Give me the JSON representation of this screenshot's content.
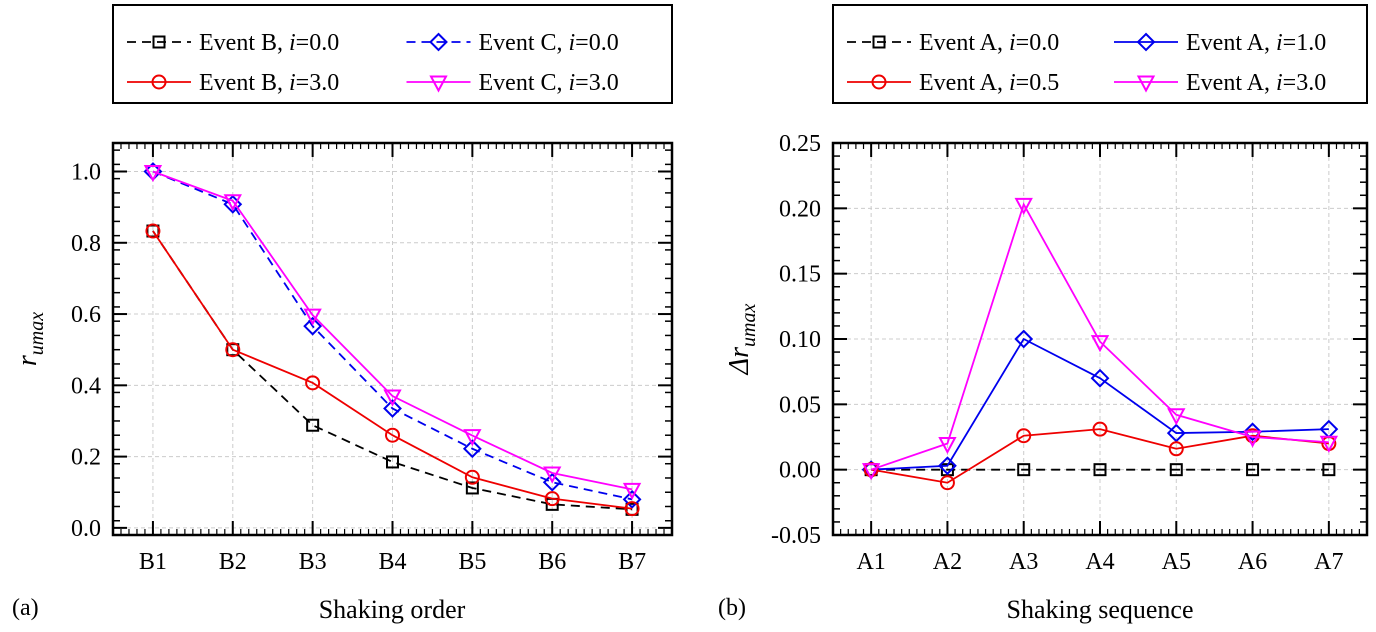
{
  "chart_data": [
    {
      "type": "line",
      "panel_label": "(a)",
      "xlabel": "Shaking order",
      "ylabel": "r",
      "ylabel_sub": "umax",
      "categories": [
        "B1",
        "B2",
        "B3",
        "B4",
        "B5",
        "B6",
        "B7"
      ],
      "ylim": [
        -0.02,
        1.08
      ],
      "yticks": [
        0.0,
        0.2,
        0.4,
        0.6,
        0.8,
        1.0
      ],
      "ytick_labels": [
        "0.0",
        "0.2",
        "0.4",
        "0.6",
        "0.8",
        "1.0"
      ],
      "grid": true,
      "legend_placement": "top (outside)",
      "series": [
        {
          "name": "Event B, i=0.0",
          "color": "#000000",
          "dash": true,
          "marker": "square",
          "values": [
            0.833,
            0.5,
            0.288,
            0.185,
            0.112,
            0.066,
            0.052
          ]
        },
        {
          "name": "Event C, i=0.0",
          "color": "#0000ee",
          "dash": true,
          "marker": "diamond",
          "values": [
            1.0,
            0.908,
            0.566,
            0.335,
            0.222,
            0.128,
            0.08
          ]
        },
        {
          "name": "Event B, i=3.0",
          "color": "#ee0000",
          "dash": false,
          "marker": "circle",
          "values": [
            0.833,
            0.5,
            0.407,
            0.26,
            0.142,
            0.082,
            0.054
          ]
        },
        {
          "name": "Event C, i=3.0",
          "color": "#ff00ff",
          "dash": false,
          "marker": "triangle-down",
          "values": [
            1.0,
            0.918,
            0.597,
            0.37,
            0.259,
            0.154,
            0.108
          ]
        }
      ]
    },
    {
      "type": "line",
      "panel_label": "(b)",
      "xlabel": "Shaking sequence",
      "ylabel": "Δr",
      "ylabel_sub": "umax",
      "categories": [
        "A1",
        "A2",
        "A3",
        "A4",
        "A5",
        "A6",
        "A7"
      ],
      "ylim": [
        -0.05,
        0.25
      ],
      "yticks": [
        -0.05,
        0.0,
        0.05,
        0.1,
        0.15,
        0.2,
        0.25
      ],
      "ytick_labels": [
        "-0.05",
        "0.00",
        "0.05",
        "0.10",
        "0.15",
        "0.20",
        "0.25"
      ],
      "grid": true,
      "legend_placement": "top (outside)",
      "series": [
        {
          "name": "Event A, i=0.0",
          "color": "#000000",
          "dash": true,
          "marker": "square",
          "values": [
            0,
            0,
            0,
            0,
            0,
            0,
            0
          ]
        },
        {
          "name": "Event A, i=1.0",
          "color": "#0000ee",
          "dash": false,
          "marker": "diamond",
          "values": [
            0,
            0.003,
            0.1,
            0.07,
            0.028,
            0.029,
            0.031
          ]
        },
        {
          "name": "Event A, i=0.5",
          "color": "#ee0000",
          "dash": false,
          "marker": "circle",
          "values": [
            0,
            -0.01,
            0.026,
            0.031,
            0.016,
            0.026,
            0.02
          ]
        },
        {
          "name": "Event A, i=3.0",
          "color": "#ff00ff",
          "dash": false,
          "marker": "triangle-down",
          "values": [
            0,
            0.02,
            0.203,
            0.098,
            0.042,
            0.025,
            0.021
          ]
        }
      ]
    }
  ]
}
